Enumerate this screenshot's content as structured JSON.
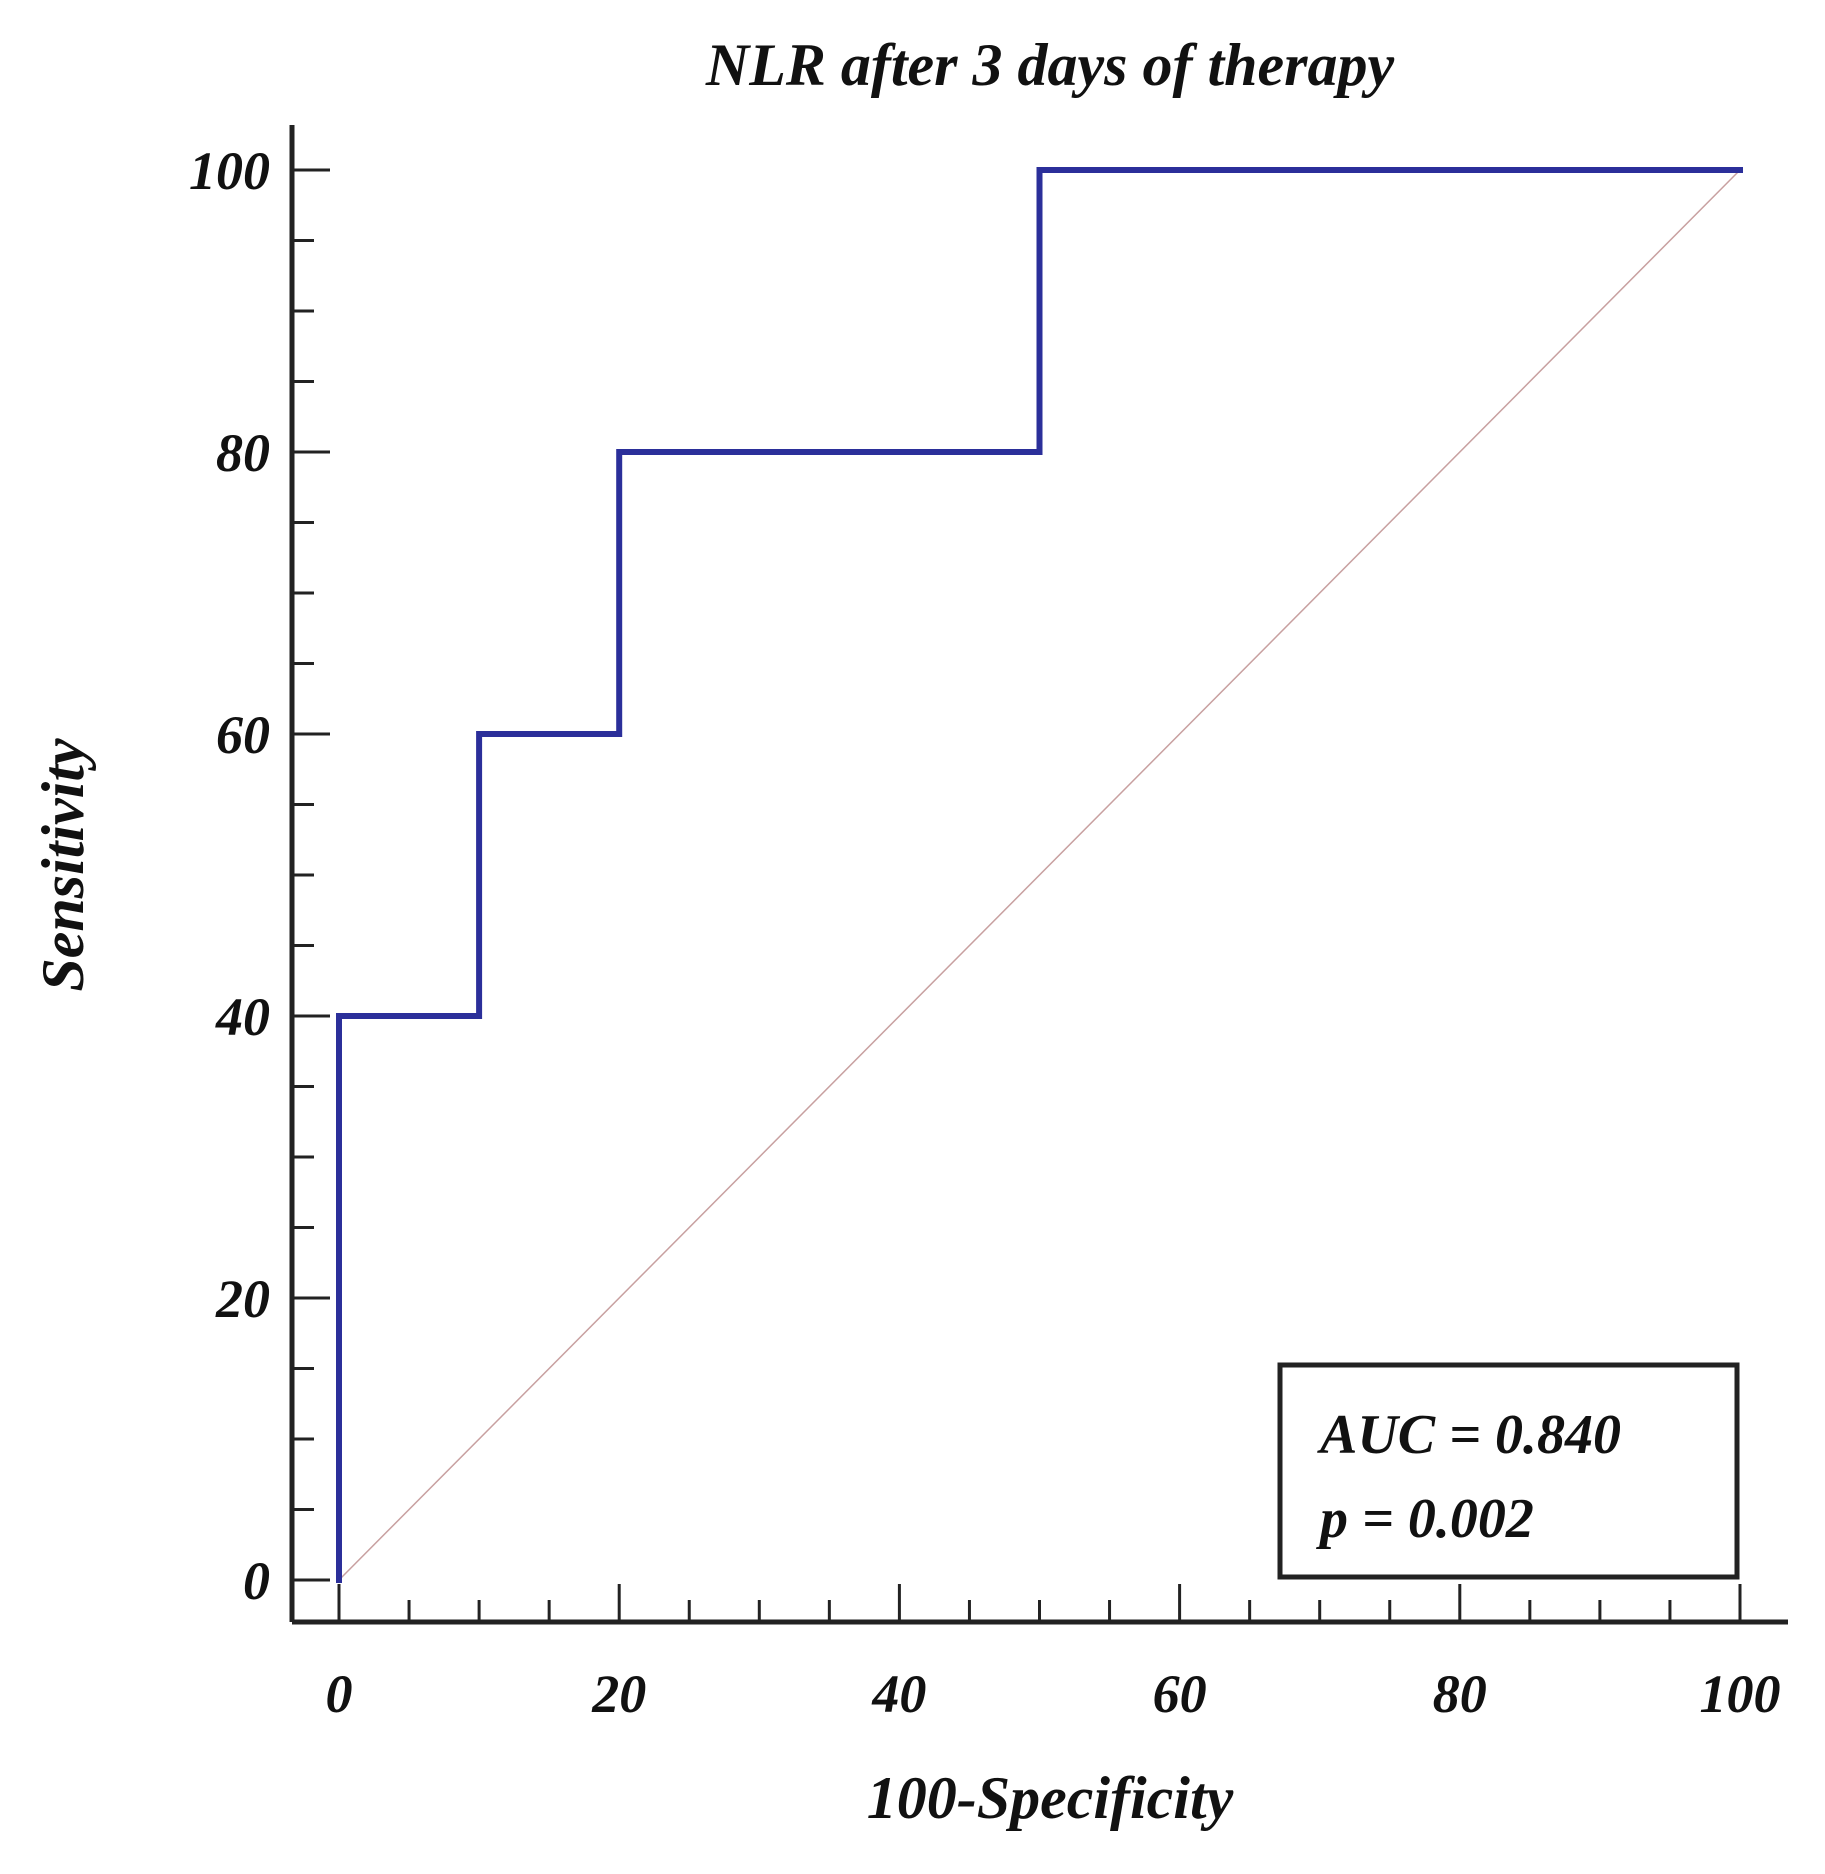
{
  "chart_data": {
    "type": "line",
    "title": "NLR after 3 days of therapy",
    "xlabel": "100-Specificity",
    "ylabel": "Sensitivity",
    "xlim": [
      0,
      100
    ],
    "ylim": [
      0,
      100
    ],
    "x_ticks": [
      0,
      20,
      40,
      60,
      80,
      100
    ],
    "y_ticks": [
      0,
      20,
      40,
      60,
      80,
      100
    ],
    "x_tick_labels": [
      "0",
      "20",
      "40",
      "60",
      "80",
      "100"
    ],
    "y_tick_labels": [
      "0",
      "20",
      "40",
      "60",
      "80",
      "100"
    ],
    "series": [
      {
        "name": "ROC curve",
        "color": "#2b2f9a",
        "x": [
          0,
          0,
          10,
          10,
          20,
          20,
          50,
          50,
          100
        ],
        "y": [
          0,
          40,
          40,
          60,
          60,
          80,
          80,
          100,
          100
        ]
      },
      {
        "name": "reference line",
        "color": "#c8a0a0",
        "x": [
          0,
          100
        ],
        "y": [
          0,
          100
        ]
      }
    ],
    "annotation": {
      "auc_text": "AUC = 0.840",
      "p_text": "p = 0.002"
    },
    "legend_position": "bottom-right"
  }
}
